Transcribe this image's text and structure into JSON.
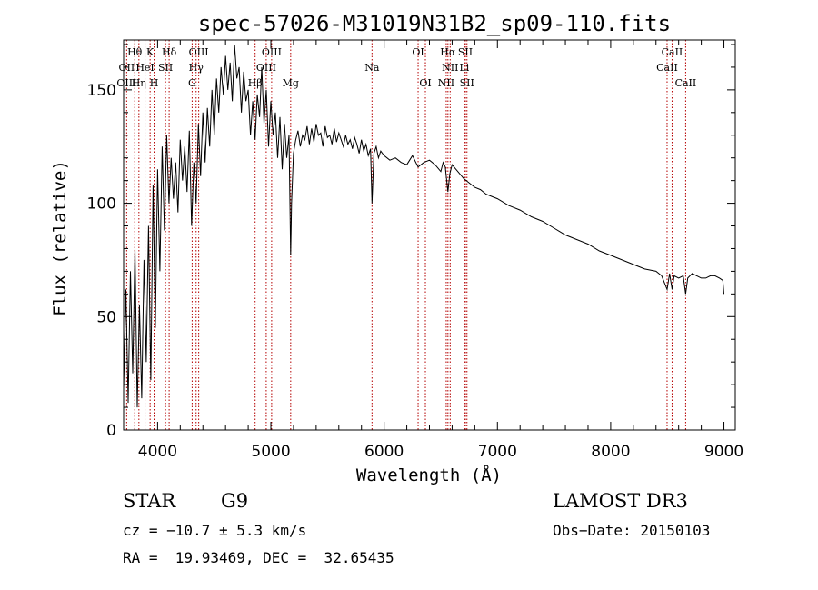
{
  "chart_data": {
    "type": "line",
    "title": "spec-57026-M31019N31B2_sp09-110.fits",
    "xlabel": "Wavelength (Å)",
    "ylabel": "Flux (relative)",
    "xlim": [
      3700,
      9100
    ],
    "ylim": [
      0,
      172
    ],
    "xticks": [
      4000,
      5000,
      6000,
      7000,
      8000,
      9000
    ],
    "yticks": [
      0,
      50,
      100,
      150
    ],
    "x_minor_step": 200,
    "y_minor_step": 10,
    "grid": false,
    "series": [
      {
        "name": "flux",
        "x": [
          3700,
          3720,
          3740,
          3760,
          3780,
          3800,
          3820,
          3840,
          3860,
          3880,
          3900,
          3920,
          3940,
          3960,
          3980,
          4000,
          4020,
          4040,
          4060,
          4080,
          4100,
          4120,
          4140,
          4160,
          4180,
          4200,
          4220,
          4240,
          4260,
          4280,
          4300,
          4320,
          4340,
          4360,
          4380,
          4400,
          4420,
          4440,
          4460,
          4480,
          4500,
          4520,
          4540,
          4560,
          4580,
          4600,
          4620,
          4640,
          4660,
          4680,
          4700,
          4720,
          4740,
          4760,
          4780,
          4800,
          4820,
          4840,
          4861,
          4880,
          4900,
          4920,
          4940,
          4960,
          4980,
          5000,
          5020,
          5040,
          5060,
          5080,
          5100,
          5120,
          5140,
          5160,
          5175,
          5183,
          5200,
          5220,
          5240,
          5260,
          5280,
          5300,
          5320,
          5340,
          5360,
          5380,
          5400,
          5420,
          5440,
          5460,
          5480,
          5500,
          5520,
          5540,
          5560,
          5580,
          5600,
          5620,
          5640,
          5660,
          5680,
          5700,
          5720,
          5740,
          5760,
          5780,
          5800,
          5820,
          5840,
          5860,
          5880,
          5893,
          5910,
          5930,
          5950,
          5970,
          6000,
          6050,
          6100,
          6150,
          6200,
          6250,
          6300,
          6350,
          6400,
          6450,
          6500,
          6520,
          6540,
          6563,
          6580,
          6600,
          6650,
          6700,
          6750,
          6800,
          6850,
          6900,
          6950,
          7000,
          7100,
          7200,
          7300,
          7400,
          7500,
          7600,
          7700,
          7800,
          7900,
          8000,
          8100,
          8200,
          8300,
          8400,
          8450,
          8498,
          8520,
          8542,
          8560,
          8600,
          8640,
          8662,
          8680,
          8720,
          8760,
          8800,
          8840,
          8880,
          8920,
          8960,
          8990,
          9000
        ],
        "values": [
          18,
          62,
          12,
          70,
          25,
          80,
          10,
          55,
          14,
          75,
          30,
          90,
          22,
          108,
          45,
          115,
          70,
          125,
          88,
          130,
          100,
          120,
          102,
          118,
          96,
          128,
          110,
          125,
          105,
          132,
          90,
          118,
          100,
          135,
          112,
          140,
          118,
          142,
          125,
          150,
          130,
          155,
          140,
          160,
          148,
          165,
          150,
          162,
          145,
          170,
          155,
          160,
          140,
          158,
          145,
          150,
          130,
          145,
          128,
          148,
          138,
          160,
          135,
          150,
          125,
          145,
          130,
          140,
          120,
          138,
          115,
          135,
          120,
          130,
          77,
          100,
          122,
          128,
          132,
          125,
          130,
          128,
          134,
          126,
          133,
          127,
          135,
          130,
          131,
          125,
          134,
          129,
          130,
          126,
          133,
          127,
          131,
          128,
          125,
          130,
          126,
          128,
          124,
          129,
          126,
          122,
          128,
          123,
          126,
          121,
          124,
          100,
          122,
          125,
          120,
          123,
          121,
          119,
          120,
          118,
          117,
          121,
          116,
          118,
          119,
          117,
          114,
          118,
          116,
          105,
          113,
          117,
          114,
          111,
          109,
          107,
          106,
          104,
          103,
          102,
          99,
          97,
          94,
          92,
          89,
          86,
          84,
          82,
          79,
          77,
          75,
          73,
          71,
          70,
          68,
          62,
          69,
          62,
          68,
          67,
          68,
          60,
          67,
          69,
          68,
          67,
          67,
          68,
          68,
          67,
          66,
          60
        ]
      }
    ],
    "line_label_rows": 3,
    "lines": [
      {
        "name": "Hθ",
        "wave": 3798,
        "row": 0
      },
      {
        "name": "OII",
        "wave": 3727,
        "row": 1
      },
      {
        "name": "OIII",
        "wave": 3727,
        "row": 2
      },
      {
        "name": "K",
        "wave": 3934,
        "row": 0
      },
      {
        "name": "HeI",
        "wave": 3889,
        "row": 1
      },
      {
        "name": "Hη",
        "wave": 3835,
        "row": 2
      },
      {
        "name": "SII",
        "wave": 4070,
        "row": 1
      },
      {
        "name": "H",
        "wave": 3969,
        "row": 2
      },
      {
        "name": "Hδ",
        "wave": 4102,
        "row": 0
      },
      {
        "name": "OIII",
        "wave": 4363,
        "row": 0
      },
      {
        "name": "Hγ",
        "wave": 4340,
        "row": 1
      },
      {
        "name": "G",
        "wave": 4305,
        "row": 2
      },
      {
        "name": "Hβ",
        "wave": 4861,
        "row": 2
      },
      {
        "name": "OIII",
        "wave": 5007,
        "row": 0
      },
      {
        "name": "OIII",
        "wave": 4959,
        "row": 1
      },
      {
        "name": "Mg",
        "wave": 5175,
        "row": 2
      },
      {
        "name": "Na",
        "wave": 5893,
        "row": 1
      },
      {
        "name": "OI",
        "wave": 6300,
        "row": 0
      },
      {
        "name": "OI",
        "wave": 6364,
        "row": 2
      },
      {
        "name": "Hα",
        "wave": 6563,
        "row": 0
      },
      {
        "name": "SII",
        "wave": 6717,
        "row": 0
      },
      {
        "name": "NII",
        "wave": 6583,
        "row": 1
      },
      {
        "name": "Li",
        "wave": 6708,
        "row": 1
      },
      {
        "name": "NII",
        "wave": 6548,
        "row": 2
      },
      {
        "name": "SII",
        "wave": 6731,
        "row": 2
      },
      {
        "name": "CaII",
        "wave": 8542,
        "row": 0
      },
      {
        "name": "CaII",
        "wave": 8498,
        "row": 1
      },
      {
        "name": "CaII",
        "wave": 8662,
        "row": 2
      }
    ],
    "line_color": "#b40000"
  },
  "info": {
    "object_class": "STAR",
    "subclass": "G9",
    "survey": "LAMOST DR3",
    "redshift": "cz = −10.7 ± 5.3 km/s",
    "obs_date": "Obs−Date: 20150103",
    "coords": "RA =  19.93469, DEC =  32.65435"
  }
}
